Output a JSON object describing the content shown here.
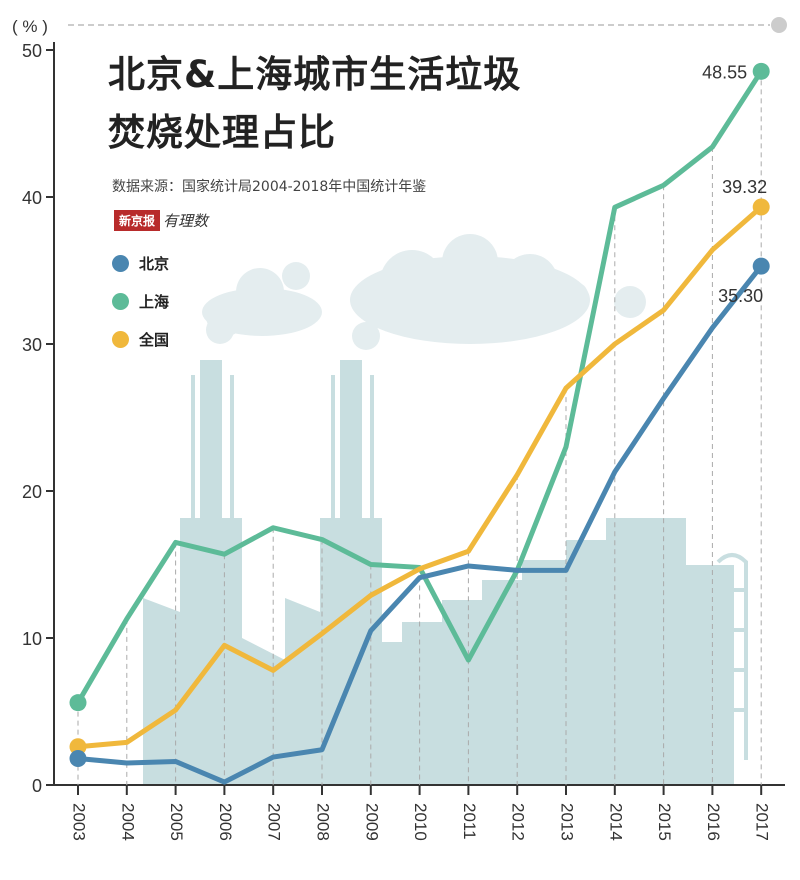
{
  "chart_data": {
    "type": "line",
    "title_line1": "北京&上海城市生活垃圾",
    "title_line2": "焚烧处理占比",
    "source": "数据来源：国家统计局2004-2018年中国统计年鉴",
    "brand_box": "新京报",
    "brand_hand": "有理数",
    "y_unit": "( % )",
    "ylim": [
      0,
      50
    ],
    "yticks": [
      0,
      10,
      20,
      30,
      40,
      50
    ],
    "grid": false,
    "legend_position": "top-left",
    "categories": [
      "2003",
      "2004",
      "2005",
      "2006",
      "2007",
      "2008",
      "2009",
      "2010",
      "2011",
      "2012",
      "2013",
      "2014",
      "2015",
      "2016",
      "2017"
    ],
    "series": [
      {
        "name": "北京",
        "color": "#4a86b0",
        "values": [
          1.8,
          1.5,
          1.6,
          0.2,
          1.9,
          2.4,
          10.5,
          14.1,
          14.9,
          14.6,
          14.6,
          21.3,
          26.3,
          31.1,
          35.3
        ]
      },
      {
        "name": "上海",
        "color": "#5dbb98",
        "values": [
          5.6,
          11.3,
          16.5,
          15.7,
          17.5,
          16.7,
          15.0,
          14.8,
          8.5,
          14.6,
          23.0,
          39.3,
          40.8,
          43.4,
          48.55
        ]
      },
      {
        "name": "全国",
        "color": "#f0b83c",
        "values": [
          2.6,
          2.9,
          5.1,
          9.5,
          7.8,
          10.3,
          12.9,
          14.7,
          15.9,
          21.1,
          27.0,
          30.0,
          32.3,
          36.4,
          39.32
        ]
      }
    ],
    "end_labels": {
      "北京": "35.30",
      "上海": "48.55",
      "全国": "39.32"
    }
  }
}
